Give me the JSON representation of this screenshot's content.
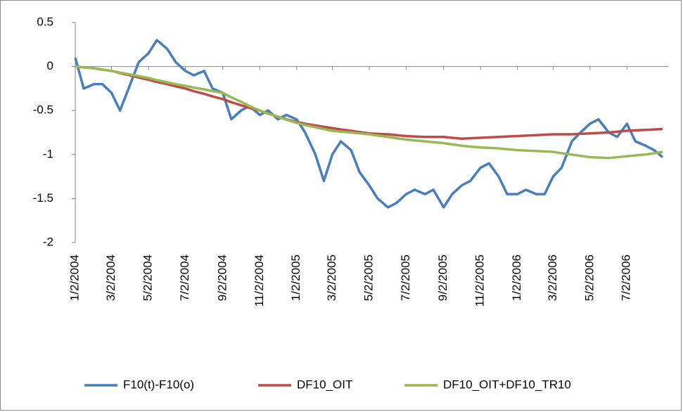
{
  "chart_data": {
    "type": "line",
    "x": [
      "1/2/2004",
      "1/16/2004",
      "2/2/2004",
      "2/16/2004",
      "3/2/2004",
      "3/16/2004",
      "4/2/2004",
      "4/16/2004",
      "5/2/2004",
      "5/16/2004",
      "6/2/2004",
      "6/16/2004",
      "7/2/2004",
      "7/16/2004",
      "8/2/2004",
      "8/16/2004",
      "9/2/2004",
      "9/16/2004",
      "10/2/2004",
      "10/16/2004",
      "11/2/2004",
      "11/16/2004",
      "12/2/2004",
      "12/16/2004",
      "1/2/2005",
      "1/16/2005",
      "2/2/2005",
      "2/16/2005",
      "3/2/2005",
      "3/16/2005",
      "4/2/2005",
      "4/16/2005",
      "5/2/2005",
      "5/16/2005",
      "6/2/2005",
      "6/16/2005",
      "7/2/2005",
      "7/16/2005",
      "8/2/2005",
      "8/16/2005",
      "9/2/2005",
      "9/16/2005",
      "10/2/2005",
      "10/16/2005",
      "11/2/2005",
      "11/16/2005",
      "12/2/2005",
      "12/16/2005",
      "1/2/2006",
      "1/16/2006",
      "2/2/2006",
      "2/16/2006",
      "3/2/2006",
      "3/16/2006",
      "4/2/2006",
      "4/16/2006",
      "5/2/2006",
      "5/16/2006",
      "6/2/2006",
      "6/16/2006",
      "7/2/2006",
      "7/16/2006",
      "8/2/2006",
      "8/16/2006",
      "8/30/2006"
    ],
    "series": [
      {
        "name": "F10(t)-F10(o)",
        "color": "#4a7ebb",
        "values": [
          0.1,
          -0.25,
          -0.2,
          -0.2,
          -0.3,
          -0.5,
          -0.2,
          0.05,
          0.15,
          0.3,
          0.2,
          0.05,
          -0.05,
          -0.1,
          -0.05,
          -0.25,
          -0.3,
          -0.6,
          -0.5,
          -0.45,
          -0.55,
          -0.5,
          -0.6,
          -0.55,
          -0.6,
          -0.75,
          -1.0,
          -1.3,
          -1.0,
          -0.85,
          -0.95,
          -1.2,
          -1.35,
          -1.5,
          -1.6,
          -1.55,
          -1.45,
          -1.4,
          -1.45,
          -1.4,
          -1.6,
          -1.45,
          -1.35,
          -1.3,
          -1.15,
          -1.1,
          -1.25,
          -1.45,
          -1.45,
          -1.4,
          -1.45,
          -1.45,
          -1.25,
          -1.15,
          -0.85,
          -0.75,
          -0.65,
          -0.6,
          -0.75,
          -0.8,
          -0.65,
          -0.85,
          -0.9,
          -0.95,
          -1.03
        ]
      },
      {
        "name": "DF10_OIT",
        "color": "#be4b48",
        "values": [
          0,
          -0.01,
          -0.02,
          -0.035,
          -0.05,
          -0.075,
          -0.1,
          -0.125,
          -0.15,
          -0.175,
          -0.2,
          -0.225,
          -0.25,
          -0.28,
          -0.31,
          -0.34,
          -0.37,
          -0.405,
          -0.44,
          -0.47,
          -0.5,
          -0.535,
          -0.57,
          -0.6,
          -0.63,
          -0.65,
          -0.67,
          -0.685,
          -0.7,
          -0.715,
          -0.73,
          -0.745,
          -0.76,
          -0.765,
          -0.77,
          -0.78,
          -0.79,
          -0.795,
          -0.8,
          -0.8,
          -0.8,
          -0.81,
          -0.82,
          -0.815,
          -0.81,
          -0.805,
          -0.8,
          -0.795,
          -0.79,
          -0.785,
          -0.78,
          -0.775,
          -0.77,
          -0.77,
          -0.77,
          -0.765,
          -0.76,
          -0.755,
          -0.75,
          -0.74,
          -0.73,
          -0.725,
          -0.72,
          -0.715,
          -0.71
        ]
      },
      {
        "name": "DF10_OIT+DF10_TR10",
        "color": "#98b954",
        "values": [
          0,
          -0.01,
          -0.02,
          -0.035,
          -0.05,
          -0.07,
          -0.09,
          -0.11,
          -0.13,
          -0.155,
          -0.18,
          -0.2,
          -0.22,
          -0.24,
          -0.26,
          -0.28,
          -0.3,
          -0.35,
          -0.4,
          -0.45,
          -0.5,
          -0.535,
          -0.57,
          -0.605,
          -0.64,
          -0.665,
          -0.69,
          -0.71,
          -0.73,
          -0.74,
          -0.75,
          -0.76,
          -0.77,
          -0.785,
          -0.8,
          -0.815,
          -0.83,
          -0.84,
          -0.85,
          -0.86,
          -0.87,
          -0.885,
          -0.9,
          -0.91,
          -0.92,
          -0.925,
          -0.93,
          -0.94,
          -0.95,
          -0.955,
          -0.96,
          -0.965,
          -0.97,
          -0.985,
          -1.0,
          -1.015,
          -1.03,
          -1.035,
          -1.04,
          -1.03,
          -1.02,
          -1.01,
          -1.0,
          -0.985,
          -0.97
        ]
      }
    ],
    "xticks": [
      "1/2/2004",
      "3/2/2004",
      "5/2/2004",
      "7/2/2004",
      "9/2/2004",
      "11/2/2004",
      "1/2/2005",
      "3/2/2005",
      "5/2/2005",
      "7/2/2005",
      "9/2/2005",
      "11/2/2005",
      "1/2/2006",
      "3/2/2006",
      "5/2/2006",
      "7/2/2006"
    ],
    "ylim": [
      -2,
      0.5
    ],
    "yticks": [
      0.5,
      0,
      -0.5,
      -1,
      -1.5,
      -2
    ],
    "grid": false,
    "legend": "bottom"
  }
}
